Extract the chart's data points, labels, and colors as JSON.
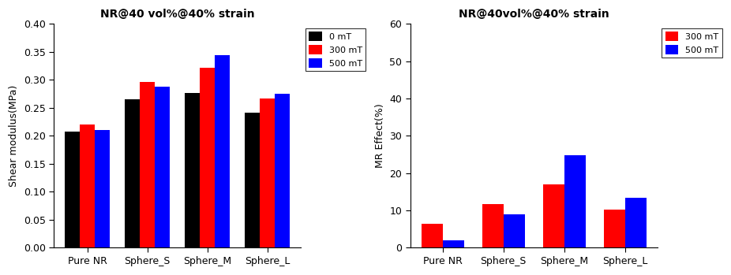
{
  "categories": [
    "Pure NR",
    "Sphere_S",
    "Sphere_M",
    "Sphere_L"
  ],
  "left_title": "NR@40 vol%@40% strain",
  "left_ylabel": "Shear modulus(MPa)",
  "left_ylim": [
    0.0,
    0.4
  ],
  "left_yticks": [
    0.0,
    0.05,
    0.1,
    0.15,
    0.2,
    0.25,
    0.3,
    0.35,
    0.4
  ],
  "left_data": {
    "0 mT": [
      0.207,
      0.265,
      0.277,
      0.241
    ],
    "300 mT": [
      0.221,
      0.296,
      0.322,
      0.267
    ],
    "500 mT": [
      0.211,
      0.288,
      0.344,
      0.275
    ]
  },
  "left_colors": {
    "0 mT": "#000000",
    "300 mT": "#ff0000",
    "500 mT": "#0000ff"
  },
  "left_legend_labels": [
    "0 mT",
    "300 mT",
    "500 mT"
  ],
  "right_title": "NR@40vol%@40% strain",
  "right_ylabel": "MR Effect(%)",
  "right_ylim": [
    0,
    60
  ],
  "right_yticks": [
    0,
    10,
    20,
    30,
    40,
    50,
    60
  ],
  "right_data": {
    "300 mT": [
      6.5,
      11.8,
      17.0,
      10.2
    ],
    "500 mT": [
      2.0,
      8.9,
      24.8,
      13.5
    ]
  },
  "right_colors": {
    "300 mT": "#ff0000",
    "500 mT": "#0000ff"
  },
  "right_legend_labels": [
    "300 mT",
    "500 mT"
  ]
}
